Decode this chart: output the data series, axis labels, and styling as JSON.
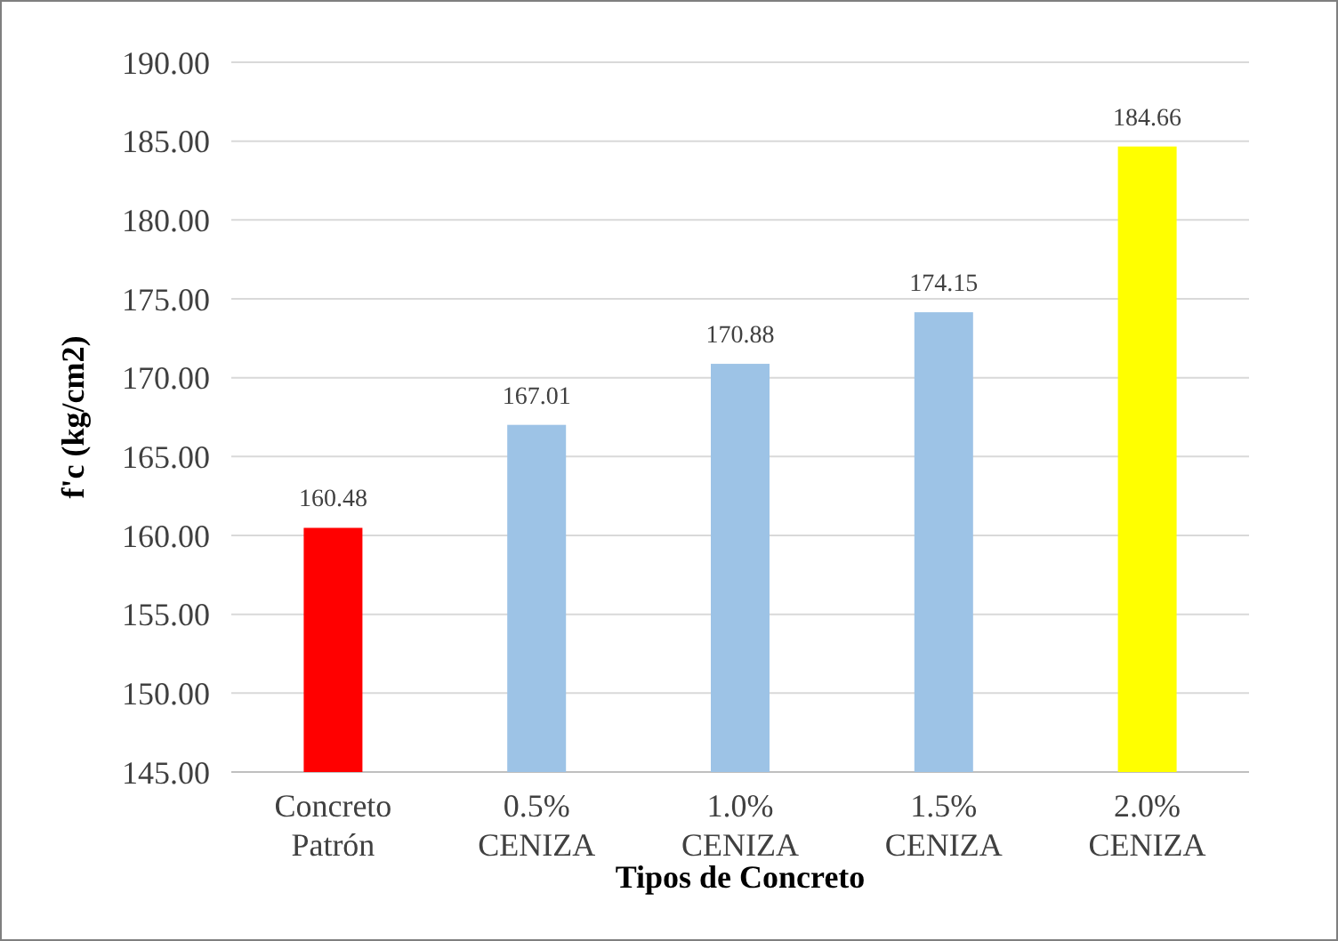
{
  "chart_data": {
    "type": "bar",
    "xlabel": "Tipos de Concreto",
    "ylabel": "f'c (kg/cm2)",
    "categories": [
      "Concreto Patrón",
      "0.5% CENIZA",
      "1.0% CENIZA",
      "1.5% CENIZA",
      "2.0% CENIZA"
    ],
    "values": [
      160.48,
      167.01,
      170.88,
      174.15,
      184.66
    ],
    "colors": [
      "#ff0000",
      "#9dc3e6",
      "#9dc3e6",
      "#9dc3e6",
      "#ffff00"
    ],
    "ylim": [
      145,
      190
    ],
    "yticks": [
      {
        "value": 145,
        "label": "145.00"
      },
      {
        "value": 150,
        "label": "150.00"
      },
      {
        "value": 155,
        "label": "155.00"
      },
      {
        "value": 160,
        "label": "160.00"
      },
      {
        "value": 165,
        "label": "165.00"
      },
      {
        "value": 170,
        "label": "170.00"
      },
      {
        "value": 175,
        "label": "175.00"
      },
      {
        "value": 180,
        "label": "180.00"
      },
      {
        "value": 185,
        "label": "185.00"
      },
      {
        "value": 190,
        "label": "190.00"
      }
    ],
    "grid": "y",
    "data_labels": true
  }
}
